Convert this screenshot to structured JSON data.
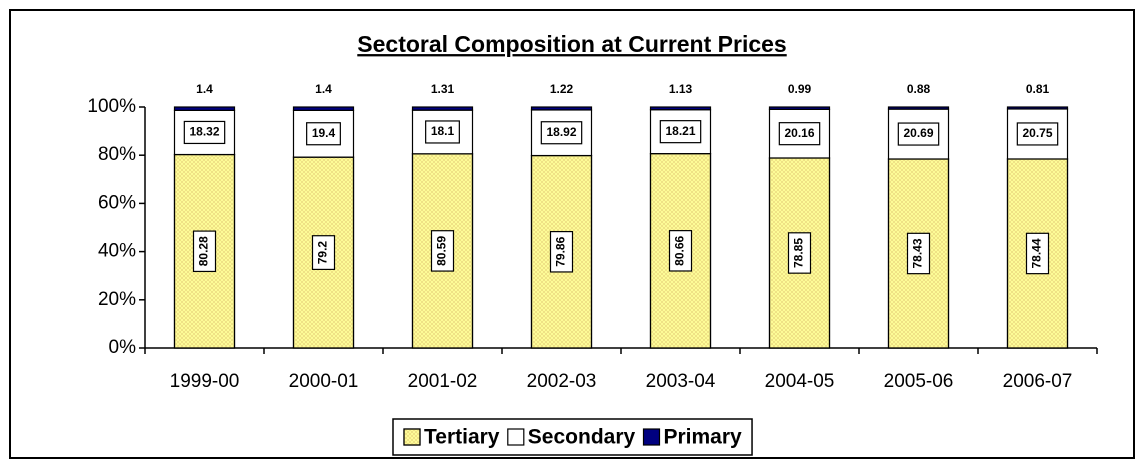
{
  "chart_data": {
    "type": "stacked_bar",
    "title": "Sectoral Composition at Current Prices",
    "categories": [
      "1999-00",
      "2000-01",
      "2001-02",
      "2002-03",
      "2003-04",
      "2004-05",
      "2005-06",
      "2006-07"
    ],
    "series": [
      {
        "name": "Tertiary",
        "color": "#ffff99",
        "values": [
          80.28,
          79.2,
          80.59,
          79.86,
          80.66,
          78.85,
          78.43,
          78.44
        ]
      },
      {
        "name": "Secondary",
        "color": "#ffffff",
        "values": [
          18.32,
          19.4,
          18.1,
          18.92,
          18.21,
          20.16,
          20.69,
          20.75
        ]
      },
      {
        "name": "Primary",
        "color": "#000080",
        "values": [
          1.4,
          1.4,
          1.31,
          1.22,
          1.13,
          0.99,
          0.88,
          0.81
        ]
      }
    ],
    "ylim": [
      0,
      100
    ],
    "yticks": [
      {
        "value": 0,
        "label": "0%"
      },
      {
        "value": 20,
        "label": "20%"
      },
      {
        "value": 40,
        "label": "40%"
      },
      {
        "value": 60,
        "label": "60%"
      },
      {
        "value": 80,
        "label": "80%"
      },
      {
        "value": 100,
        "label": "100%"
      }
    ],
    "grid": false,
    "legend": "bottom"
  }
}
